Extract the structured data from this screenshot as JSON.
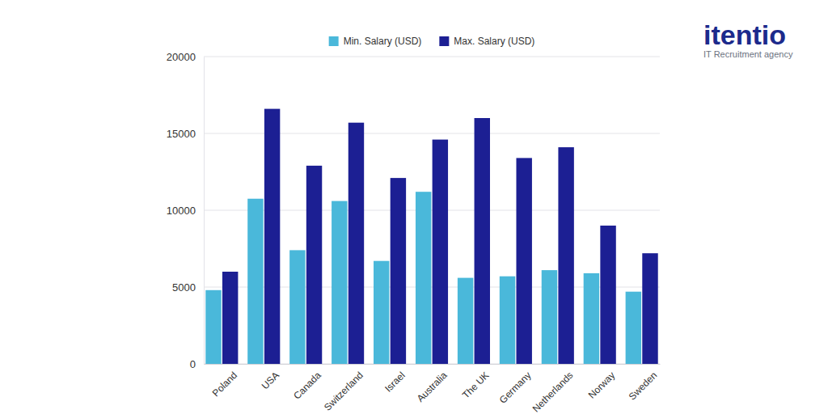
{
  "chart_data": {
    "type": "bar",
    "categories": [
      "Poland",
      "USA",
      "Canada",
      "Switzerland",
      "Israel",
      "Australia",
      "The UK",
      "Germany",
      "Netherlands",
      "Norway",
      "Sweden"
    ],
    "series": [
      {
        "name": "Min. Salary (USD)",
        "color": "#4ab8da",
        "values": [
          4800,
          10750,
          7400,
          10600,
          6700,
          11200,
          5600,
          5700,
          6100,
          5900,
          4700
        ]
      },
      {
        "name": "Max. Salary (USD)",
        "color": "#1c1f93",
        "values": [
          6000,
          16600,
          12900,
          15700,
          12100,
          14600,
          16000,
          13400,
          14100,
          9000,
          7200
        ]
      }
    ],
    "ylim": [
      0,
      20000
    ],
    "yticks": [
      0,
      5000,
      10000,
      15000,
      20000
    ],
    "grid": true,
    "legend": "top",
    "annotations": [
      "itentio",
      "IT Recruitment agency"
    ]
  }
}
